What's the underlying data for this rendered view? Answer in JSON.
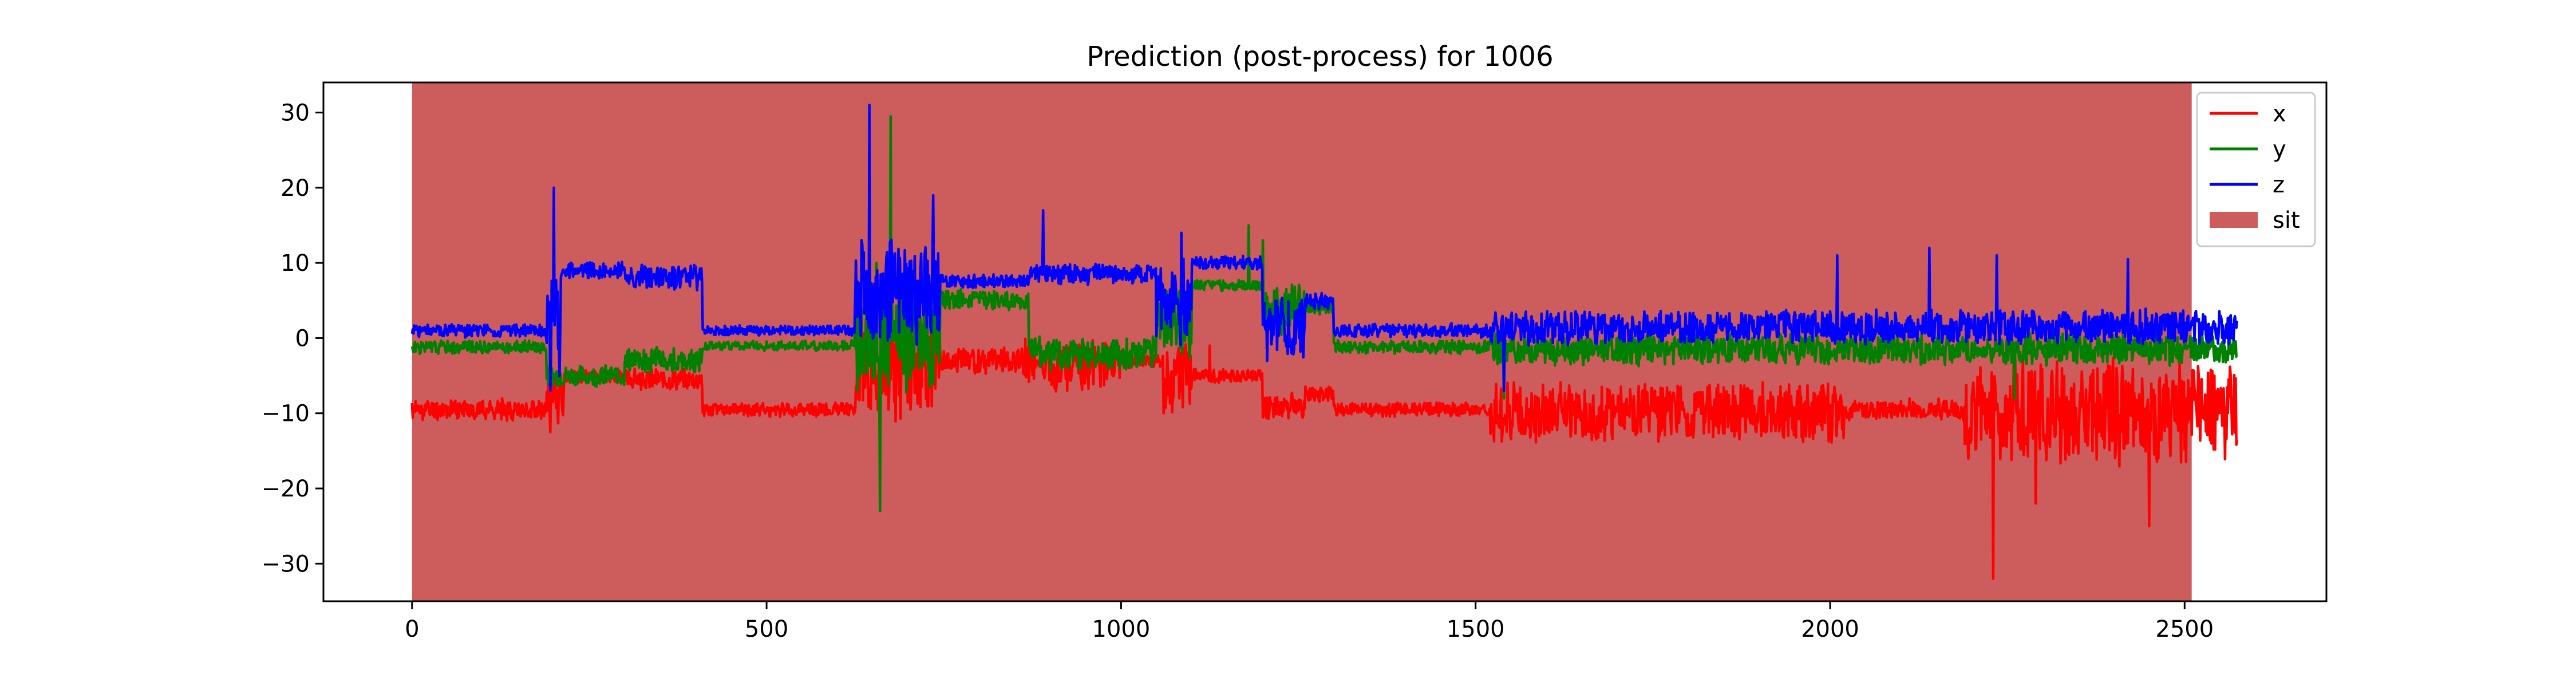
{
  "chart_data": {
    "type": "line",
    "title": "Prediction (post-process) for 1006",
    "xlabel": "",
    "ylabel": "",
    "xlim": [
      -125,
      2700
    ],
    "ylim": [
      -35,
      34
    ],
    "x_ticks": [
      0,
      500,
      1000,
      1500,
      2000,
      2500
    ],
    "y_ticks": [
      -30,
      -20,
      -10,
      0,
      10,
      20,
      30
    ],
    "grid": false,
    "legend": {
      "placement": "top-right",
      "entries": [
        {
          "label": "x",
          "kind": "line",
          "color": "#ff0000"
        },
        {
          "label": "y",
          "kind": "line",
          "color": "#008000"
        },
        {
          "label": "z",
          "kind": "line",
          "color": "#0000ff"
        },
        {
          "label": "sit",
          "kind": "patch",
          "color": "#cd5c5c"
        }
      ]
    },
    "shaded_regions": [
      {
        "label": "sit",
        "x_start": 0,
        "x_end": 2510,
        "color": "#cd5c5c"
      }
    ],
    "series": [
      {
        "name": "x",
        "color": "#ff0000",
        "segments": [
          {
            "x0": 0,
            "x1": 190,
            "level": -9.5,
            "noise": 1.2,
            "seed": 11
          },
          {
            "x0": 190,
            "x1": 215,
            "level": -8,
            "noise": 3,
            "seed": 12
          },
          {
            "x0": 215,
            "x1": 300,
            "level": -5,
            "noise": 0.8,
            "seed": 13
          },
          {
            "x0": 300,
            "x1": 410,
            "level": -5.5,
            "noise": 1.2,
            "seed": 14
          },
          {
            "x0": 410,
            "x1": 625,
            "level": -9.5,
            "noise": 0.8,
            "seed": 15
          },
          {
            "x0": 625,
            "x1": 745,
            "level": -4,
            "noise": 6,
            "seed": 16
          },
          {
            "x0": 745,
            "x1": 860,
            "level": -3,
            "noise": 1.5,
            "seed": 17
          },
          {
            "x0": 860,
            "x1": 1000,
            "level": -3.5,
            "noise": 3,
            "seed": 18
          },
          {
            "x0": 1000,
            "x1": 1060,
            "level": -3,
            "noise": 0.8,
            "seed": 19
          },
          {
            "x0": 1060,
            "x1": 1100,
            "level": -5,
            "noise": 4,
            "seed": 20
          },
          {
            "x0": 1100,
            "x1": 1200,
            "level": -5,
            "noise": 0.8,
            "seed": 21
          },
          {
            "x0": 1200,
            "x1": 1260,
            "level": -9,
            "noise": 1.5,
            "seed": 22
          },
          {
            "x0": 1260,
            "x1": 1300,
            "level": -7.5,
            "noise": 1,
            "seed": 23
          },
          {
            "x0": 1300,
            "x1": 1520,
            "level": -9.5,
            "noise": 0.8,
            "seed": 24
          },
          {
            "x0": 1520,
            "x1": 2020,
            "level": -10,
            "noise": 3.5,
            "seed": 25
          },
          {
            "x0": 2020,
            "x1": 2190,
            "level": -9.5,
            "noise": 1.2,
            "seed": 26
          },
          {
            "x0": 2190,
            "x1": 2575,
            "level": -10,
            "noise": 6,
            "seed": 27
          }
        ],
        "spikes": [
          [
            195,
            -12.5
          ],
          [
            660,
            -15
          ],
          [
            670,
            7
          ],
          [
            1060,
            -10
          ],
          [
            2230,
            -32
          ],
          [
            2450,
            -25
          ],
          [
            2290,
            -22
          ],
          [
            1125,
            -1
          ]
        ]
      },
      {
        "name": "y",
        "color": "#008000",
        "segments": [
          {
            "x0": 0,
            "x1": 190,
            "level": -1.2,
            "noise": 0.8,
            "seed": 31
          },
          {
            "x0": 190,
            "x1": 300,
            "level": -5,
            "noise": 1.2,
            "seed": 32
          },
          {
            "x0": 300,
            "x1": 410,
            "level": -3,
            "noise": 1.5,
            "seed": 33
          },
          {
            "x0": 410,
            "x1": 625,
            "level": -1,
            "noise": 0.6,
            "seed": 34
          },
          {
            "x0": 625,
            "x1": 745,
            "level": 0,
            "noise": 6,
            "seed": 35
          },
          {
            "x0": 745,
            "x1": 870,
            "level": 5,
            "noise": 1.2,
            "seed": 36
          },
          {
            "x0": 870,
            "x1": 1050,
            "level": -2,
            "noise": 2,
            "seed": 37
          },
          {
            "x0": 1050,
            "x1": 1100,
            "level": 2,
            "noise": 4,
            "seed": 38
          },
          {
            "x0": 1100,
            "x1": 1200,
            "level": 7,
            "noise": 0.6,
            "seed": 39
          },
          {
            "x0": 1200,
            "x1": 1260,
            "level": 4,
            "noise": 3,
            "seed": 40
          },
          {
            "x0": 1260,
            "x1": 1300,
            "level": 4,
            "noise": 1,
            "seed": 41
          },
          {
            "x0": 1300,
            "x1": 1520,
            "level": -1.2,
            "noise": 0.8,
            "seed": 42
          },
          {
            "x0": 1520,
            "x1": 2020,
            "level": -1.5,
            "noise": 1.8,
            "seed": 43
          },
          {
            "x0": 2020,
            "x1": 2575,
            "level": -1.5,
            "noise": 1.8,
            "seed": 44
          }
        ],
        "spikes": [
          [
            660,
            -23
          ],
          [
            675,
            29.5
          ],
          [
            655,
            10
          ],
          [
            1180,
            15
          ],
          [
            1200,
            13
          ],
          [
            1540,
            -8
          ],
          [
            2260,
            -8
          ]
        ]
      },
      {
        "name": "z",
        "color": "#0000ff",
        "segments": [
          {
            "x0": 0,
            "x1": 190,
            "level": 1,
            "noise": 0.8,
            "seed": 51
          },
          {
            "x0": 190,
            "x1": 210,
            "level": 2,
            "noise": 6,
            "seed": 52
          },
          {
            "x0": 210,
            "x1": 300,
            "level": 9,
            "noise": 1,
            "seed": 53
          },
          {
            "x0": 300,
            "x1": 410,
            "level": 8,
            "noise": 1.5,
            "seed": 54
          },
          {
            "x0": 410,
            "x1": 625,
            "level": 1,
            "noise": 0.6,
            "seed": 55
          },
          {
            "x0": 625,
            "x1": 745,
            "level": 6,
            "noise": 6,
            "seed": 56
          },
          {
            "x0": 745,
            "x1": 870,
            "level": 7.5,
            "noise": 0.8,
            "seed": 57
          },
          {
            "x0": 870,
            "x1": 1050,
            "level": 8.5,
            "noise": 1.2,
            "seed": 58
          },
          {
            "x0": 1050,
            "x1": 1100,
            "level": 5,
            "noise": 5,
            "seed": 59
          },
          {
            "x0": 1100,
            "x1": 1200,
            "level": 10,
            "noise": 0.8,
            "seed": 60
          },
          {
            "x0": 1200,
            "x1": 1260,
            "level": 1,
            "noise": 4,
            "seed": 61
          },
          {
            "x0": 1260,
            "x1": 1300,
            "level": 5,
            "noise": 1,
            "seed": 62
          },
          {
            "x0": 1300,
            "x1": 1520,
            "level": 1,
            "noise": 0.8,
            "seed": 63
          },
          {
            "x0": 1520,
            "x1": 2020,
            "level": 1.5,
            "noise": 2,
            "seed": 64
          },
          {
            "x0": 2020,
            "x1": 2575,
            "level": 1.5,
            "noise": 2,
            "seed": 65
          }
        ],
        "spikes": [
          [
            200,
            20
          ],
          [
            195,
            -7
          ],
          [
            645,
            31
          ],
          [
            735,
            19
          ],
          [
            890,
            17
          ],
          [
            1085,
            14
          ],
          [
            2010,
            11
          ],
          [
            2140,
            12
          ],
          [
            2235,
            11
          ],
          [
            2420,
            10.5
          ],
          [
            1540,
            -7
          ]
        ]
      }
    ]
  }
}
